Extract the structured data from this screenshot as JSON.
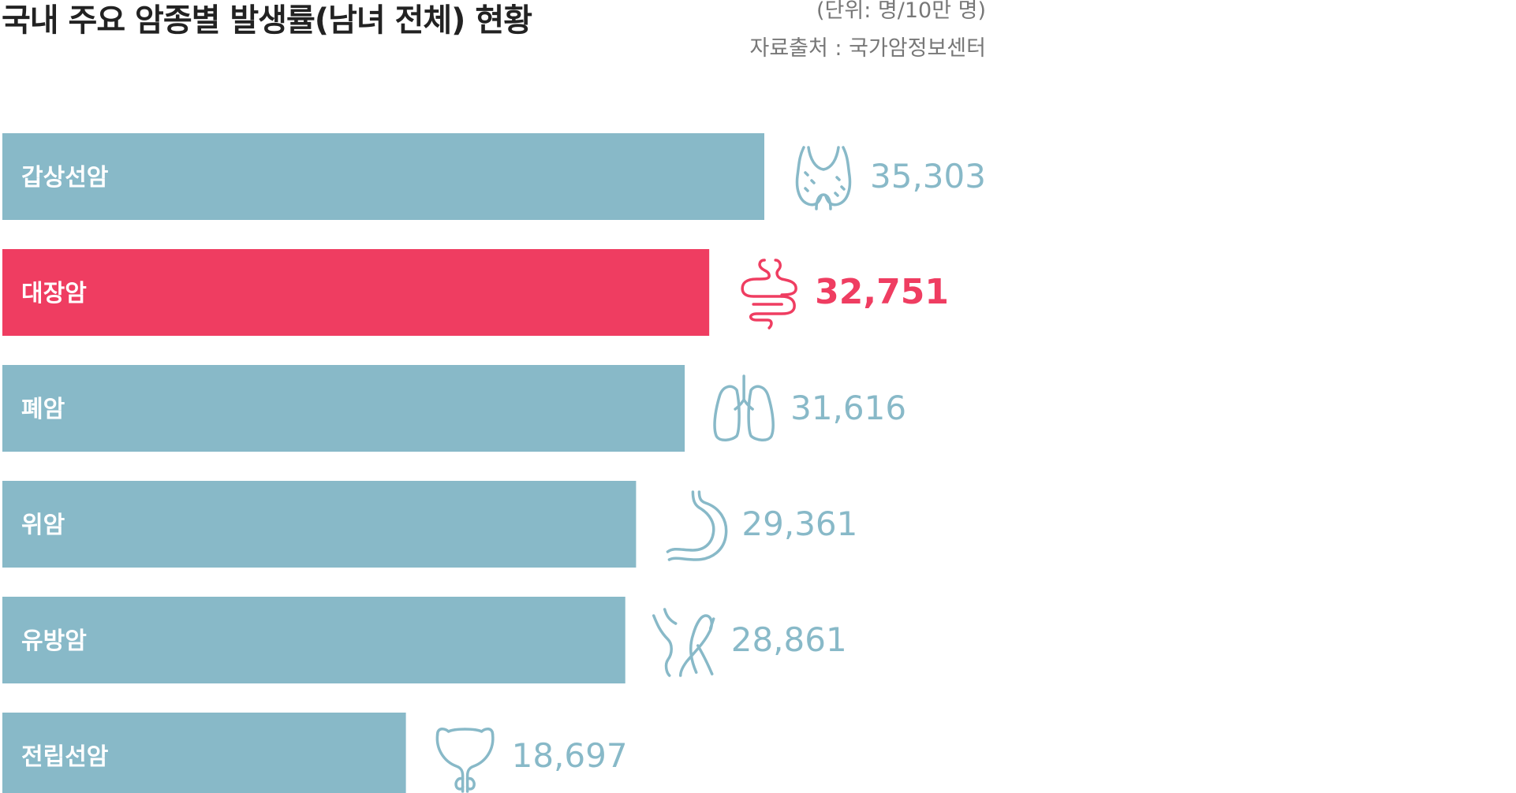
{
  "title": "국내 주요 암종별 발생률(남녀 전체) 현황",
  "unit": "(단위: 명/10만 명)",
  "source": "자료출처 : 국가암정보센터",
  "colors": {
    "default_bar": "#88B9C8",
    "highlight_bar": "#EF3D61",
    "label_text": "#FFFFFF"
  },
  "chart_data": {
    "type": "bar",
    "orientation": "horizontal",
    "categories": [
      "갑상선암",
      "대장암",
      "폐암",
      "위암",
      "유방암",
      "전립선암"
    ],
    "values": [
      35303,
      32751,
      31616,
      29361,
      28861,
      18697
    ],
    "value_labels": [
      "35,303",
      "32,751",
      "31,616",
      "29,361",
      "28,861",
      "18,697"
    ],
    "icons": [
      "thyroid-icon",
      "intestine-icon",
      "lungs-icon",
      "stomach-icon",
      "breast-icon",
      "prostate-icon"
    ],
    "highlight_index": 1,
    "xlim": [
      0,
      35303
    ],
    "grid": false,
    "legend": "none"
  }
}
